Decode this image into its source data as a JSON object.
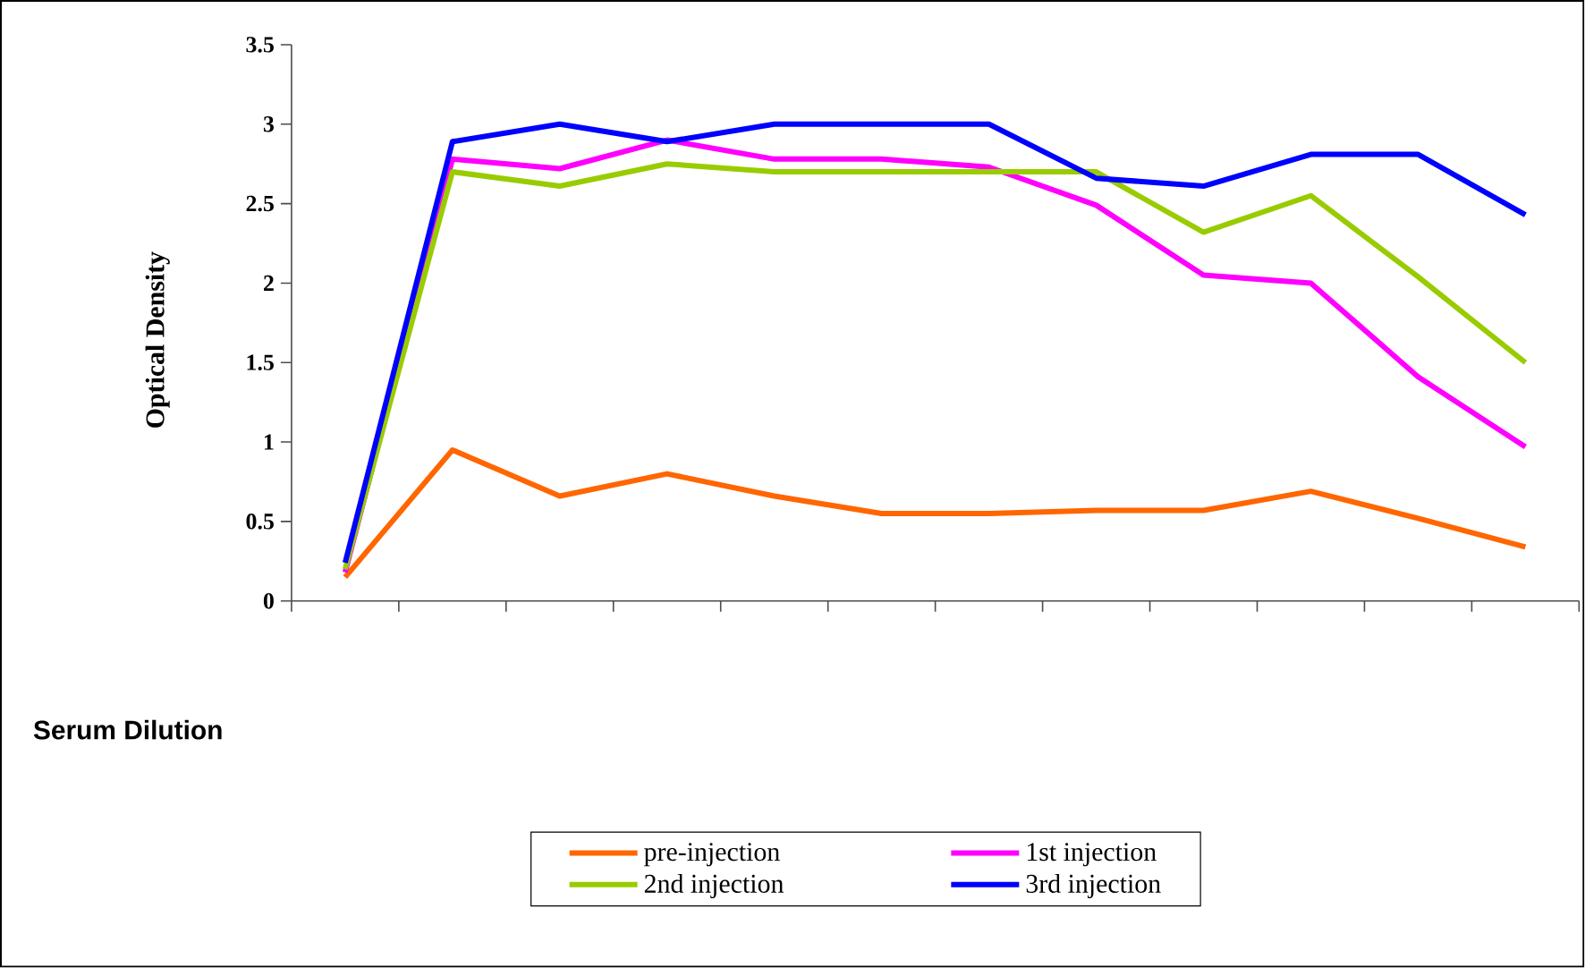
{
  "chart_data": {
    "type": "line",
    "xlabel": "Serum Dilution",
    "ylabel": "Optical Density",
    "categories": [
      null,
      null,
      null,
      null,
      null,
      null,
      null,
      null,
      null,
      null,
      null,
      null
    ],
    "ylim": [
      0,
      3.5
    ],
    "yticks": [
      0,
      0.5,
      1,
      1.5,
      2,
      2.5,
      3,
      3.5
    ],
    "grid": false,
    "legend": "bottom",
    "marker": "none",
    "line_style": "solid",
    "series": [
      {
        "name": "pre-injection",
        "color": "#ff6600",
        "values": [
          0.15,
          0.95,
          0.66,
          0.8,
          0.66,
          0.55,
          0.55,
          0.57,
          0.57,
          0.69,
          0.52,
          0.34
        ]
      },
      {
        "name": "1st injection",
        "color": "#ff00ff",
        "values": [
          0.18,
          2.78,
          2.72,
          2.9,
          2.78,
          2.78,
          2.73,
          2.49,
          2.05,
          2.0,
          1.41,
          0.97
        ]
      },
      {
        "name": "2nd injection",
        "color": "#99cc00",
        "values": [
          0.2,
          2.7,
          2.61,
          2.75,
          2.7,
          2.7,
          2.7,
          2.7,
          2.32,
          2.55,
          2.04,
          1.5
        ]
      },
      {
        "name": "3rd injection",
        "color": "#0000ff",
        "values": [
          0.24,
          2.89,
          3.0,
          2.89,
          3.0,
          3.0,
          3.0,
          2.66,
          2.61,
          2.81,
          2.81,
          2.43
        ]
      }
    ]
  }
}
